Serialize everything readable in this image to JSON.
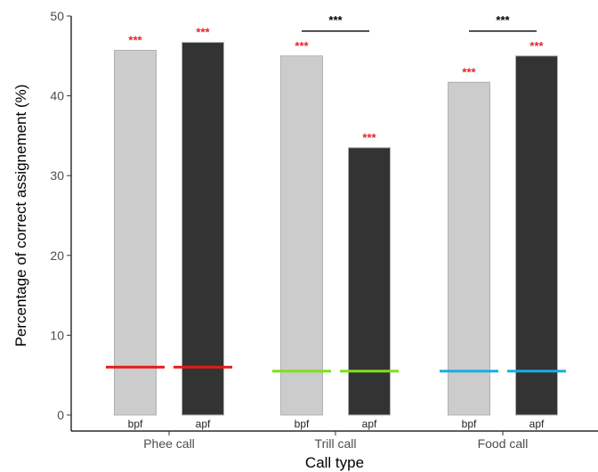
{
  "chart_data": {
    "type": "bar",
    "title": "",
    "xlabel": "Call type",
    "ylabel": "Percentage of correct assignement (%)",
    "ylim": [
      0,
      50
    ],
    "yticks": [
      0,
      10,
      20,
      30,
      40,
      50
    ],
    "grid": false,
    "categories": [
      "Phee call",
      "Trill call",
      "Food call"
    ],
    "bar_labels": [
      "bpf",
      "apf"
    ],
    "series": [
      {
        "values": [
          45.7,
          45.0,
          41.7
        ],
        "color": "#cccccc"
      },
      {
        "values": [
          46.7,
          33.5,
          45.0
        ],
        "color": "#333333"
      }
    ],
    "chance_levels": [
      {
        "value": 6.0,
        "color": "#e41a1c"
      },
      {
        "value": 5.5,
        "color": "#7fe015"
      },
      {
        "value": 5.5,
        "color": "#17aee3"
      }
    ],
    "significance": {
      "label": "***",
      "bar_color": "#e8232a",
      "bracket_color": "#000000",
      "brackets": [
        {
          "category": "Trill call",
          "value": 48.0
        },
        {
          "category": "Food call",
          "value": 48.0
        }
      ]
    }
  }
}
